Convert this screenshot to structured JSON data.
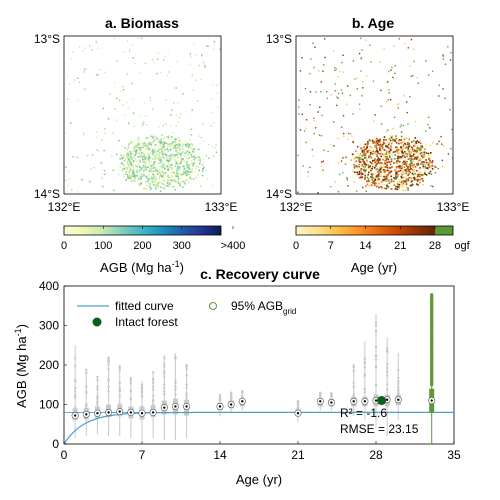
{
  "panel_a": {
    "title": "a. Biomass",
    "lat_top": "13°S",
    "lat_bottom": "14°S",
    "lon_left": "132°E",
    "lon_right": "133°E",
    "colorbar": {
      "ticks": [
        "0",
        "100",
        "200",
        "300",
        ">400"
      ],
      "label_main": "AGB (Mg ha",
      "label_sup": "-1",
      "label_end": ")",
      "colors": [
        "#ffffd9",
        "#edf8b1",
        "#c7e9b4",
        "#7fcdbb",
        "#41b6c4",
        "#1d91c0",
        "#225ea8",
        "#253494",
        "#081d58"
      ]
    }
  },
  "panel_b": {
    "title": "b. Age",
    "lat_top": "13°S",
    "lat_bottom": "14°S",
    "lon_left": "132°E",
    "lon_right": "133°E",
    "colorbar": {
      "ticks": [
        "0",
        "7",
        "14",
        "21",
        "28",
        "ogf"
      ],
      "label": "Age (yr)",
      "colors": [
        "#fff5c8",
        "#fee391",
        "#fec44f",
        "#fe9929",
        "#ec7014",
        "#cc4c02",
        "#993404",
        "#662506"
      ],
      "ogf_color": "#5b9a32"
    }
  },
  "chart_data": {
    "type": "scatter",
    "title": "c. Recovery curve",
    "xlabel": "Age (yr)",
    "ylabel_main": "AGB (Mg ha",
    "ylabel_sup": "-1",
    "ylabel_end": ")",
    "xlim": [
      0,
      35
    ],
    "ylim": [
      0,
      400
    ],
    "xticks": [
      0,
      7,
      14,
      21,
      28,
      35
    ],
    "yticks": [
      0,
      100,
      200,
      300,
      400
    ],
    "legend": {
      "fitted_curve": "fitted curve",
      "intact_forest": "Intact forest",
      "agb_grid_main": "95% AGB",
      "agb_grid_sub": "grid"
    },
    "fitted_curve": {
      "plateau": 80,
      "rate": 0.55,
      "color": "#4aa3c8"
    },
    "median_points": {
      "x": [
        1,
        2,
        3,
        4,
        5,
        6,
        7,
        8,
        9,
        10,
        11,
        14,
        15,
        16,
        21,
        23,
        24,
        26,
        27,
        28,
        29,
        30,
        33
      ],
      "y": [
        72,
        75,
        78,
        80,
        82,
        80,
        78,
        80,
        92,
        95,
        95,
        95,
        100,
        108,
        78,
        108,
        105,
        108,
        108,
        110,
        112,
        112,
        110
      ]
    },
    "box_whiskers": {
      "x": [
        1,
        2,
        3,
        4,
        5,
        6,
        7,
        8,
        9,
        10,
        11,
        14,
        15,
        16,
        21,
        23,
        24,
        26,
        27,
        28,
        29,
        30
      ],
      "q1": [
        60,
        62,
        65,
        68,
        70,
        65,
        62,
        68,
        75,
        75,
        72,
        85,
        90,
        95,
        70,
        95,
        95,
        95,
        95,
        95,
        95,
        98
      ],
      "q3": [
        90,
        92,
        95,
        100,
        100,
        95,
        95,
        98,
        110,
        115,
        112,
        105,
        110,
        115,
        90,
        115,
        115,
        120,
        120,
        125,
        125,
        125
      ],
      "min": [
        15,
        20,
        25,
        20,
        20,
        15,
        10,
        15,
        10,
        10,
        15,
        70,
        80,
        85,
        55,
        85,
        85,
        70,
        60,
        40,
        20,
        60
      ],
      "max": [
        250,
        190,
        170,
        220,
        200,
        170,
        160,
        185,
        225,
        230,
        200,
        125,
        130,
        135,
        110,
        130,
        130,
        200,
        260,
        330,
        270,
        230
      ]
    },
    "intact_forest": {
      "x": 28.5,
      "y": 110
    },
    "ogf_column": {
      "x": 33,
      "min": 0,
      "q1": 80,
      "q3": 140,
      "max": 380
    },
    "hline": {
      "y": 80
    },
    "stats": {
      "r2": "R² = -1.6",
      "rmse": "RMSE = 23.15"
    },
    "colors": {
      "box": "#c8c8c8",
      "ogf": "#5b9a32",
      "intact": "#0b5e1c"
    }
  }
}
